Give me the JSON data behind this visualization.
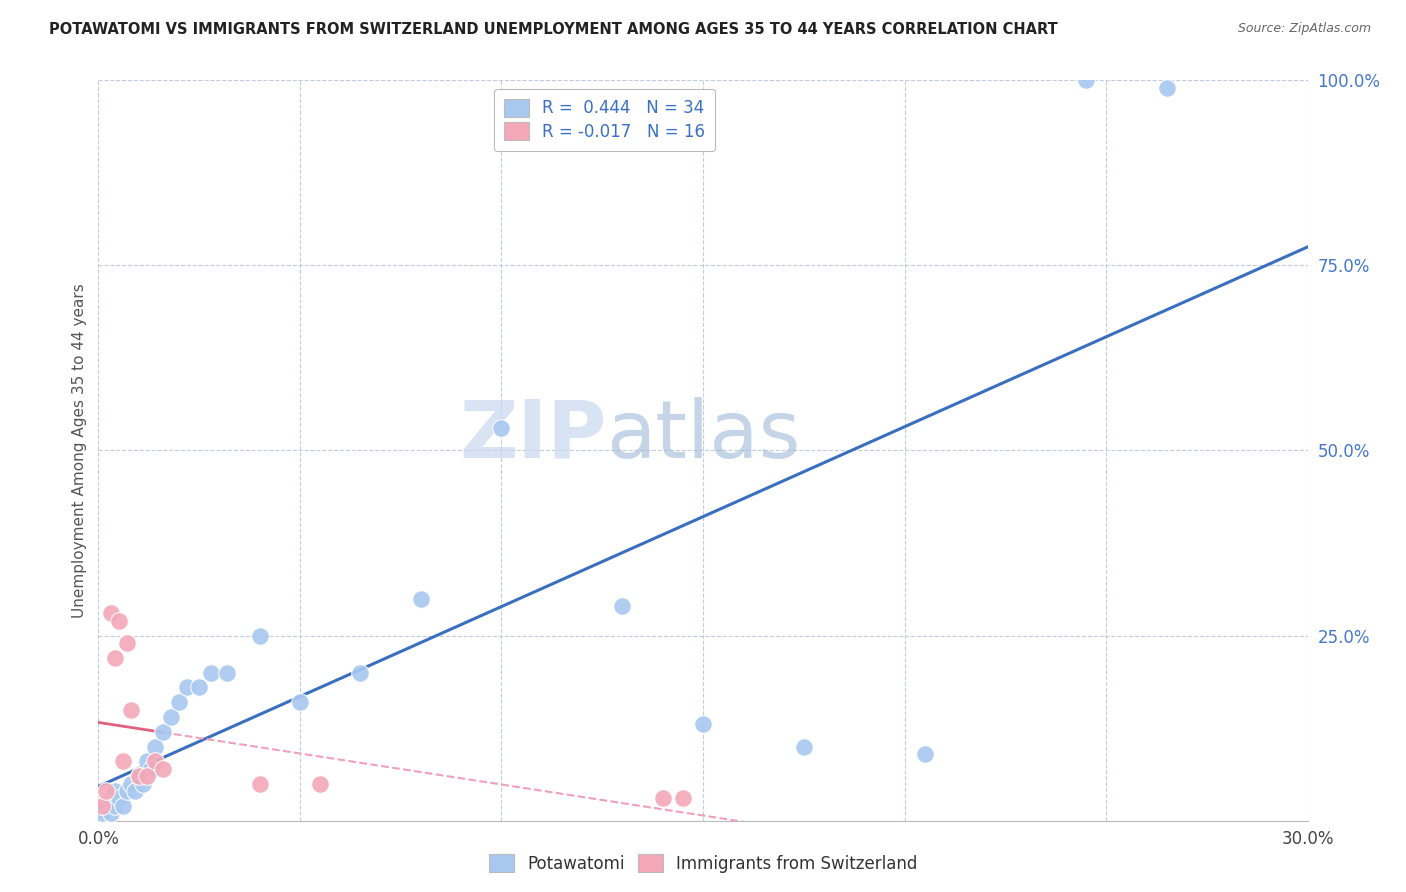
{
  "title": "POTAWATOMI VS IMMIGRANTS FROM SWITZERLAND UNEMPLOYMENT AMONG AGES 35 TO 44 YEARS CORRELATION CHART",
  "source": "Source: ZipAtlas.com",
  "ylabel": "Unemployment Among Ages 35 to 44 years",
  "xlim": [
    0.0,
    0.3
  ],
  "ylim": [
    0.0,
    1.0
  ],
  "xticks": [
    0.0,
    0.05,
    0.1,
    0.15,
    0.2,
    0.25,
    0.3
  ],
  "xtick_labels": [
    "0.0%",
    "",
    "",
    "",
    "",
    "",
    "30.0%"
  ],
  "yticks": [
    0.0,
    0.25,
    0.5,
    0.75,
    1.0
  ],
  "ytick_labels": [
    "",
    "25.0%",
    "50.0%",
    "75.0%",
    "100.0%"
  ],
  "legend_blue_label": "Potawatomi",
  "legend_pink_label": "Immigrants from Switzerland",
  "R_blue": 0.444,
  "N_blue": 34,
  "R_pink": -0.017,
  "N_pink": 16,
  "blue_color": "#A8C8F0",
  "pink_color": "#F4A8B8",
  "blue_line_color": "#3A6FC0",
  "pink_line_solid_color": "#E06080",
  "pink_line_dash_color": "#F0A0B8",
  "grid_color": "#C0CCE0",
  "background_color": "#FFFFFF",
  "zip_color": "#C8D8F0",
  "atlas_color": "#A0B8D8",
  "r_value_color": "#3A70C8",
  "blue_scatter_x": [
    0.001,
    0.002,
    0.003,
    0.003,
    0.004,
    0.004,
    0.005,
    0.006,
    0.007,
    0.008,
    0.009,
    0.01,
    0.011,
    0.012,
    0.013,
    0.014,
    0.016,
    0.018,
    0.02,
    0.022,
    0.025,
    0.028,
    0.032,
    0.04,
    0.05,
    0.065,
    0.08,
    0.1,
    0.13,
    0.15,
    0.175,
    0.205,
    0.245,
    0.265
  ],
  "blue_scatter_y": [
    0.01,
    0.02,
    0.01,
    0.03,
    0.02,
    0.04,
    0.03,
    0.02,
    0.04,
    0.05,
    0.04,
    0.06,
    0.05,
    0.08,
    0.07,
    0.1,
    0.12,
    0.14,
    0.16,
    0.18,
    0.18,
    0.2,
    0.2,
    0.25,
    0.16,
    0.2,
    0.3,
    0.53,
    0.29,
    0.13,
    0.1,
    0.09,
    1.0,
    0.99
  ],
  "pink_scatter_x": [
    0.001,
    0.002,
    0.003,
    0.004,
    0.005,
    0.006,
    0.007,
    0.008,
    0.01,
    0.012,
    0.014,
    0.016,
    0.04,
    0.055,
    0.14,
    0.145
  ],
  "pink_scatter_y": [
    0.02,
    0.04,
    0.28,
    0.22,
    0.27,
    0.08,
    0.24,
    0.15,
    0.06,
    0.06,
    0.08,
    0.07,
    0.05,
    0.05,
    0.03,
    0.03
  ]
}
